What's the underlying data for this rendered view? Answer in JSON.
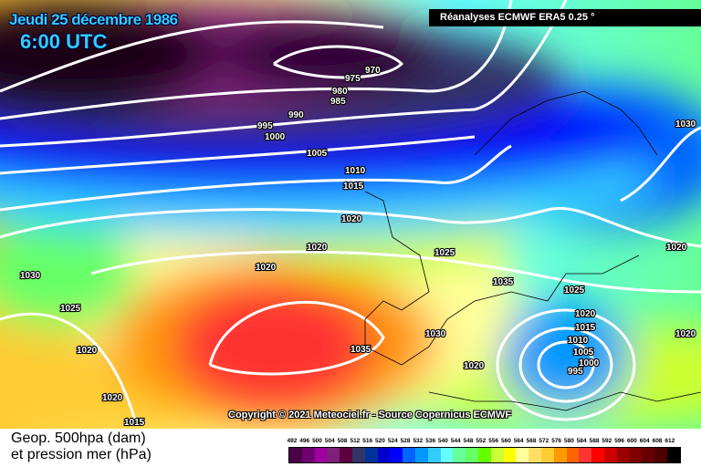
{
  "header": {
    "date": "Jeudi 25 décembre 1986",
    "time": "6:00 UTC",
    "source": "Réanalyses ECMWF ERA5 0.25 °"
  },
  "copyright": "Copyright © 2021 Meteociel.fr - Source Copernicus ECMWF",
  "legend": {
    "title_line1": "Geop. 500hpa (dam)",
    "title_line2": "et pression mer (hPa)",
    "levels": [
      "492",
      "496",
      "500",
      "504",
      "508",
      "512",
      "516",
      "520",
      "524",
      "528",
      "532",
      "536",
      "540",
      "544",
      "548",
      "552",
      "556",
      "560",
      "564",
      "568",
      "572",
      "576",
      "580",
      "584",
      "588",
      "592",
      "596",
      "600",
      "604",
      "608",
      "612"
    ],
    "colors": [
      "#4b0048",
      "#6e0070",
      "#a000a0",
      "#80207a",
      "#5a0040",
      "#333366",
      "#003399",
      "#0000cc",
      "#0000ff",
      "#0066ff",
      "#0099ff",
      "#33ccff",
      "#66ffff",
      "#66ff99",
      "#66ff66",
      "#66ff00",
      "#ccff33",
      "#ffff00",
      "#ffff99",
      "#ffe066",
      "#ffcc33",
      "#ff9900",
      "#ff6600",
      "#ff3333",
      "#ff0000",
      "#cc0000",
      "#990000",
      "#800000",
      "#660000",
      "#4d0000",
      "#000000"
    ]
  },
  "isobar_labels": [
    "970",
    "975",
    "980",
    "985",
    "990",
    "995",
    "1000",
    "1005",
    "1010",
    "1015",
    "1020",
    "1020",
    "1020",
    "1030",
    "1025",
    "1020",
    "1020",
    "1015",
    "1025",
    "1035",
    "1035",
    "1030",
    "1020",
    "1025",
    "1020",
    "1015",
    "1010",
    "1005",
    "1000",
    "995",
    "1020",
    "1030",
    "1020"
  ]
}
